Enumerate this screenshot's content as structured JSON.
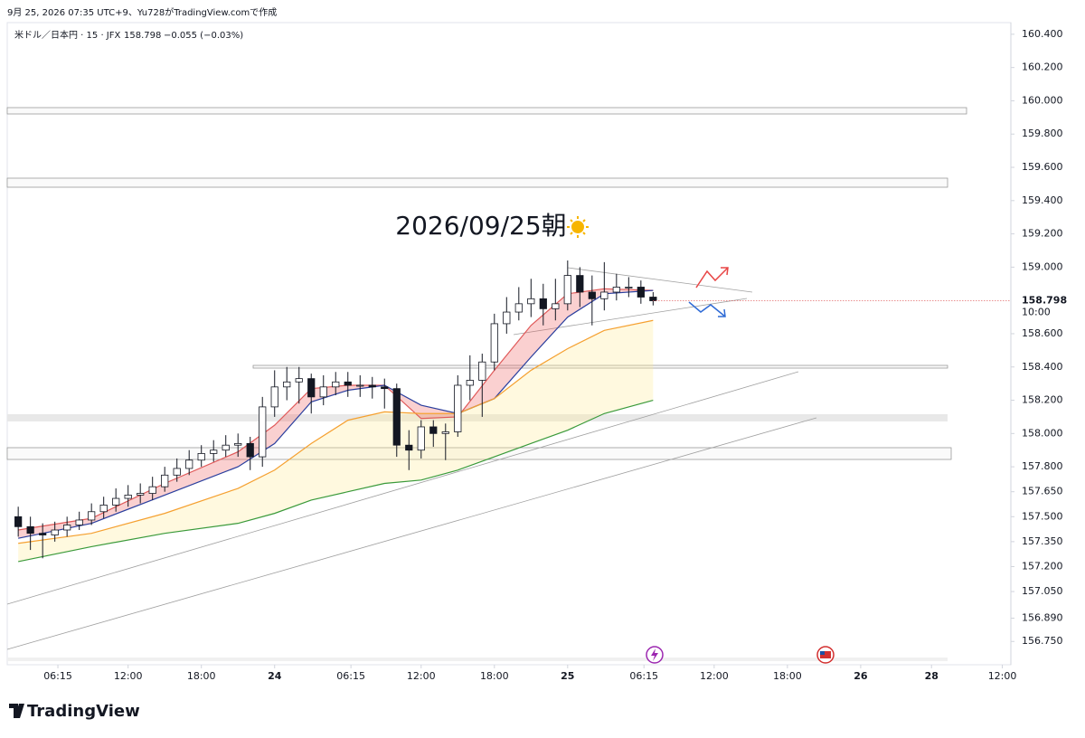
{
  "header": {
    "created": "9月 25, 2026 07:35 UTC+9、Yu728がTradingView.comで作成"
  },
  "footer": {
    "brand": "TradingView"
  },
  "chart_data": {
    "type": "candlestick",
    "symbol": "米ドル／日本円 · 15 · JFX",
    "last_price": 158.798,
    "change": "−0.055 (−0.03%)",
    "countdown": "10:00",
    "annotation": "2026/09/25朝",
    "up_color": "#ffffff",
    "down_color": "#131722",
    "x": [
      -21,
      -20,
      -19,
      -18,
      -17,
      -16,
      -15,
      -14,
      -13,
      -12,
      -11,
      -10,
      -9,
      -8,
      -7,
      -6,
      -5,
      -4,
      -3,
      -2,
      -1,
      0,
      1,
      2,
      3,
      4,
      5,
      6,
      7,
      8,
      9,
      10,
      11,
      12,
      13,
      14,
      15,
      16,
      17,
      18,
      19,
      20,
      21,
      22,
      23,
      24,
      25,
      26,
      27,
      28,
      29,
      30,
      31
    ],
    "open": [
      157.5,
      157.44,
      157.4,
      157.39,
      157.42,
      157.45,
      157.48,
      157.53,
      157.57,
      157.61,
      157.63,
      157.64,
      157.68,
      157.75,
      157.79,
      157.84,
      157.88,
      157.9,
      157.93,
      157.94,
      157.86,
      158.16,
      158.28,
      158.31,
      158.33,
      158.22,
      158.28,
      158.31,
      158.29,
      158.29,
      158.28,
      158.27,
      157.93,
      157.9,
      158.04,
      158.0,
      158.01,
      158.29,
      158.32,
      158.43,
      158.66,
      158.73,
      158.78,
      158.81,
      158.75,
      158.78,
      158.95,
      158.85,
      158.81,
      158.85,
      158.88,
      158.88,
      158.82
    ],
    "high": [
      157.56,
      157.5,
      157.46,
      157.47,
      157.5,
      157.53,
      157.58,
      157.62,
      157.67,
      157.69,
      157.7,
      157.74,
      157.8,
      157.85,
      157.9,
      157.93,
      157.96,
      157.99,
      158.0,
      157.98,
      158.22,
      158.38,
      158.4,
      158.4,
      158.36,
      158.35,
      158.37,
      158.37,
      158.35,
      158.34,
      158.33,
      158.3,
      158.02,
      158.08,
      158.08,
      158.06,
      158.35,
      158.47,
      158.48,
      158.72,
      158.82,
      158.88,
      158.93,
      158.9,
      158.93,
      159.04,
      159.0,
      158.95,
      159.03,
      158.96,
      158.94,
      158.92,
      158.85
    ],
    "low": [
      157.38,
      157.3,
      157.25,
      157.35,
      157.38,
      157.42,
      157.45,
      157.49,
      157.53,
      157.56,
      157.58,
      157.6,
      157.65,
      157.71,
      157.75,
      157.8,
      157.83,
      157.86,
      157.86,
      157.78,
      157.8,
      158.1,
      158.2,
      158.18,
      158.12,
      158.17,
      158.23,
      158.22,
      158.22,
      158.21,
      158.15,
      157.86,
      157.78,
      157.85,
      157.92,
      157.84,
      157.98,
      158.2,
      158.1,
      158.38,
      158.6,
      158.68,
      158.7,
      158.65,
      158.68,
      158.74,
      158.76,
      158.65,
      158.74,
      158.8,
      158.82,
      158.78,
      158.77
    ],
    "close": [
      157.44,
      157.4,
      157.39,
      157.42,
      157.45,
      157.48,
      157.53,
      157.57,
      157.61,
      157.63,
      157.64,
      157.68,
      157.75,
      157.79,
      157.84,
      157.88,
      157.9,
      157.93,
      157.94,
      157.86,
      158.16,
      158.28,
      158.31,
      158.33,
      158.22,
      158.28,
      158.31,
      158.29,
      158.29,
      158.28,
      158.27,
      157.93,
      157.9,
      158.04,
      158.0,
      158.01,
      158.29,
      158.32,
      158.43,
      158.66,
      158.73,
      158.78,
      158.81,
      158.75,
      158.78,
      158.95,
      158.85,
      158.81,
      158.85,
      158.88,
      158.88,
      158.82,
      158.798
    ],
    "ma_x": [
      -21,
      -15,
      -9,
      -3,
      0,
      3,
      6,
      9,
      12,
      15,
      18,
      21,
      24,
      27,
      31
    ],
    "moving_averages": [
      {
        "color": "#e05a5a",
        "values": [
          157.42,
          157.49,
          157.7,
          157.89,
          158.05,
          158.27,
          158.29,
          158.29,
          158.09,
          158.1,
          158.38,
          158.65,
          158.84,
          158.87,
          158.86
        ]
      },
      {
        "color": "#2a3f9e",
        "values": [
          157.37,
          157.46,
          157.63,
          157.8,
          157.94,
          158.19,
          158.26,
          158.29,
          158.17,
          158.12,
          158.21,
          158.46,
          158.7,
          158.84,
          158.86
        ]
      },
      {
        "color": "#f5a030",
        "values": [
          157.34,
          157.4,
          157.52,
          157.67,
          157.78,
          157.94,
          158.08,
          158.13,
          158.12,
          158.12,
          158.21,
          158.38,
          158.51,
          158.62,
          158.68
        ]
      },
      {
        "color": "#3a9a3a",
        "values": [
          157.23,
          157.32,
          157.4,
          157.46,
          157.52,
          157.6,
          157.65,
          157.7,
          157.72,
          157.78,
          157.86,
          157.94,
          158.02,
          158.12,
          158.2
        ]
      }
    ],
    "xlim": [
      -21.9,
      60.3
    ],
    "xticks": [
      {
        "value": -17.75,
        "label": "06:15"
      },
      {
        "value": -12,
        "label": "12:00"
      },
      {
        "value": -6,
        "label": "18:00"
      },
      24,
      {
        "value": 6.25,
        "label": "06:15"
      },
      {
        "value": 12,
        "label": "12:00"
      },
      {
        "value": 18,
        "label": "18:00"
      },
      25,
      {
        "value": 30.25,
        "label": "06:15"
      },
      {
        "value": 36,
        "label": "12:00"
      },
      {
        "value": 42,
        "label": "18:00"
      },
      26,
      28,
      {
        "value": 59.6,
        "label": "12:00"
      }
    ],
    "xtick_positions": [
      -17.75,
      -12,
      -6,
      0,
      6.25,
      12,
      18,
      24,
      30.25,
      36,
      42,
      48,
      53.8,
      59.6
    ],
    "ylim": [
      156.61,
      160.47
    ],
    "yticks": [
      {
        "value": 160.4,
        "label": "160.400"
      },
      {
        "value": 160.2,
        "label": "160.200"
      },
      {
        "value": 160.0,
        "label": "160.000"
      },
      {
        "value": 159.8,
        "label": "159.800"
      },
      {
        "value": 159.6,
        "label": "159.600"
      },
      {
        "value": 159.4,
        "label": "159.400"
      },
      {
        "value": 159.2,
        "label": "159.200"
      },
      {
        "value": 159.0,
        "label": "159.000"
      },
      {
        "value": 158.6,
        "label": "158.600"
      },
      {
        "value": 158.4,
        "label": "158.400"
      },
      {
        "value": 158.2,
        "label": "158.200"
      },
      {
        "value": 158.0,
        "label": "158.000"
      },
      {
        "value": 157.8,
        "label": "157.800"
      },
      {
        "value": 157.65,
        "label": "157.650"
      },
      {
        "value": 157.5,
        "label": "157.500"
      },
      {
        "value": 157.35,
        "label": "157.350"
      },
      {
        "value": 157.2,
        "label": "157.200"
      },
      {
        "value": 157.05,
        "label": "157.050"
      },
      {
        "value": 156.89,
        "label": "156.890"
      },
      {
        "value": 156.75,
        "label": "156.750"
      }
    ]
  }
}
